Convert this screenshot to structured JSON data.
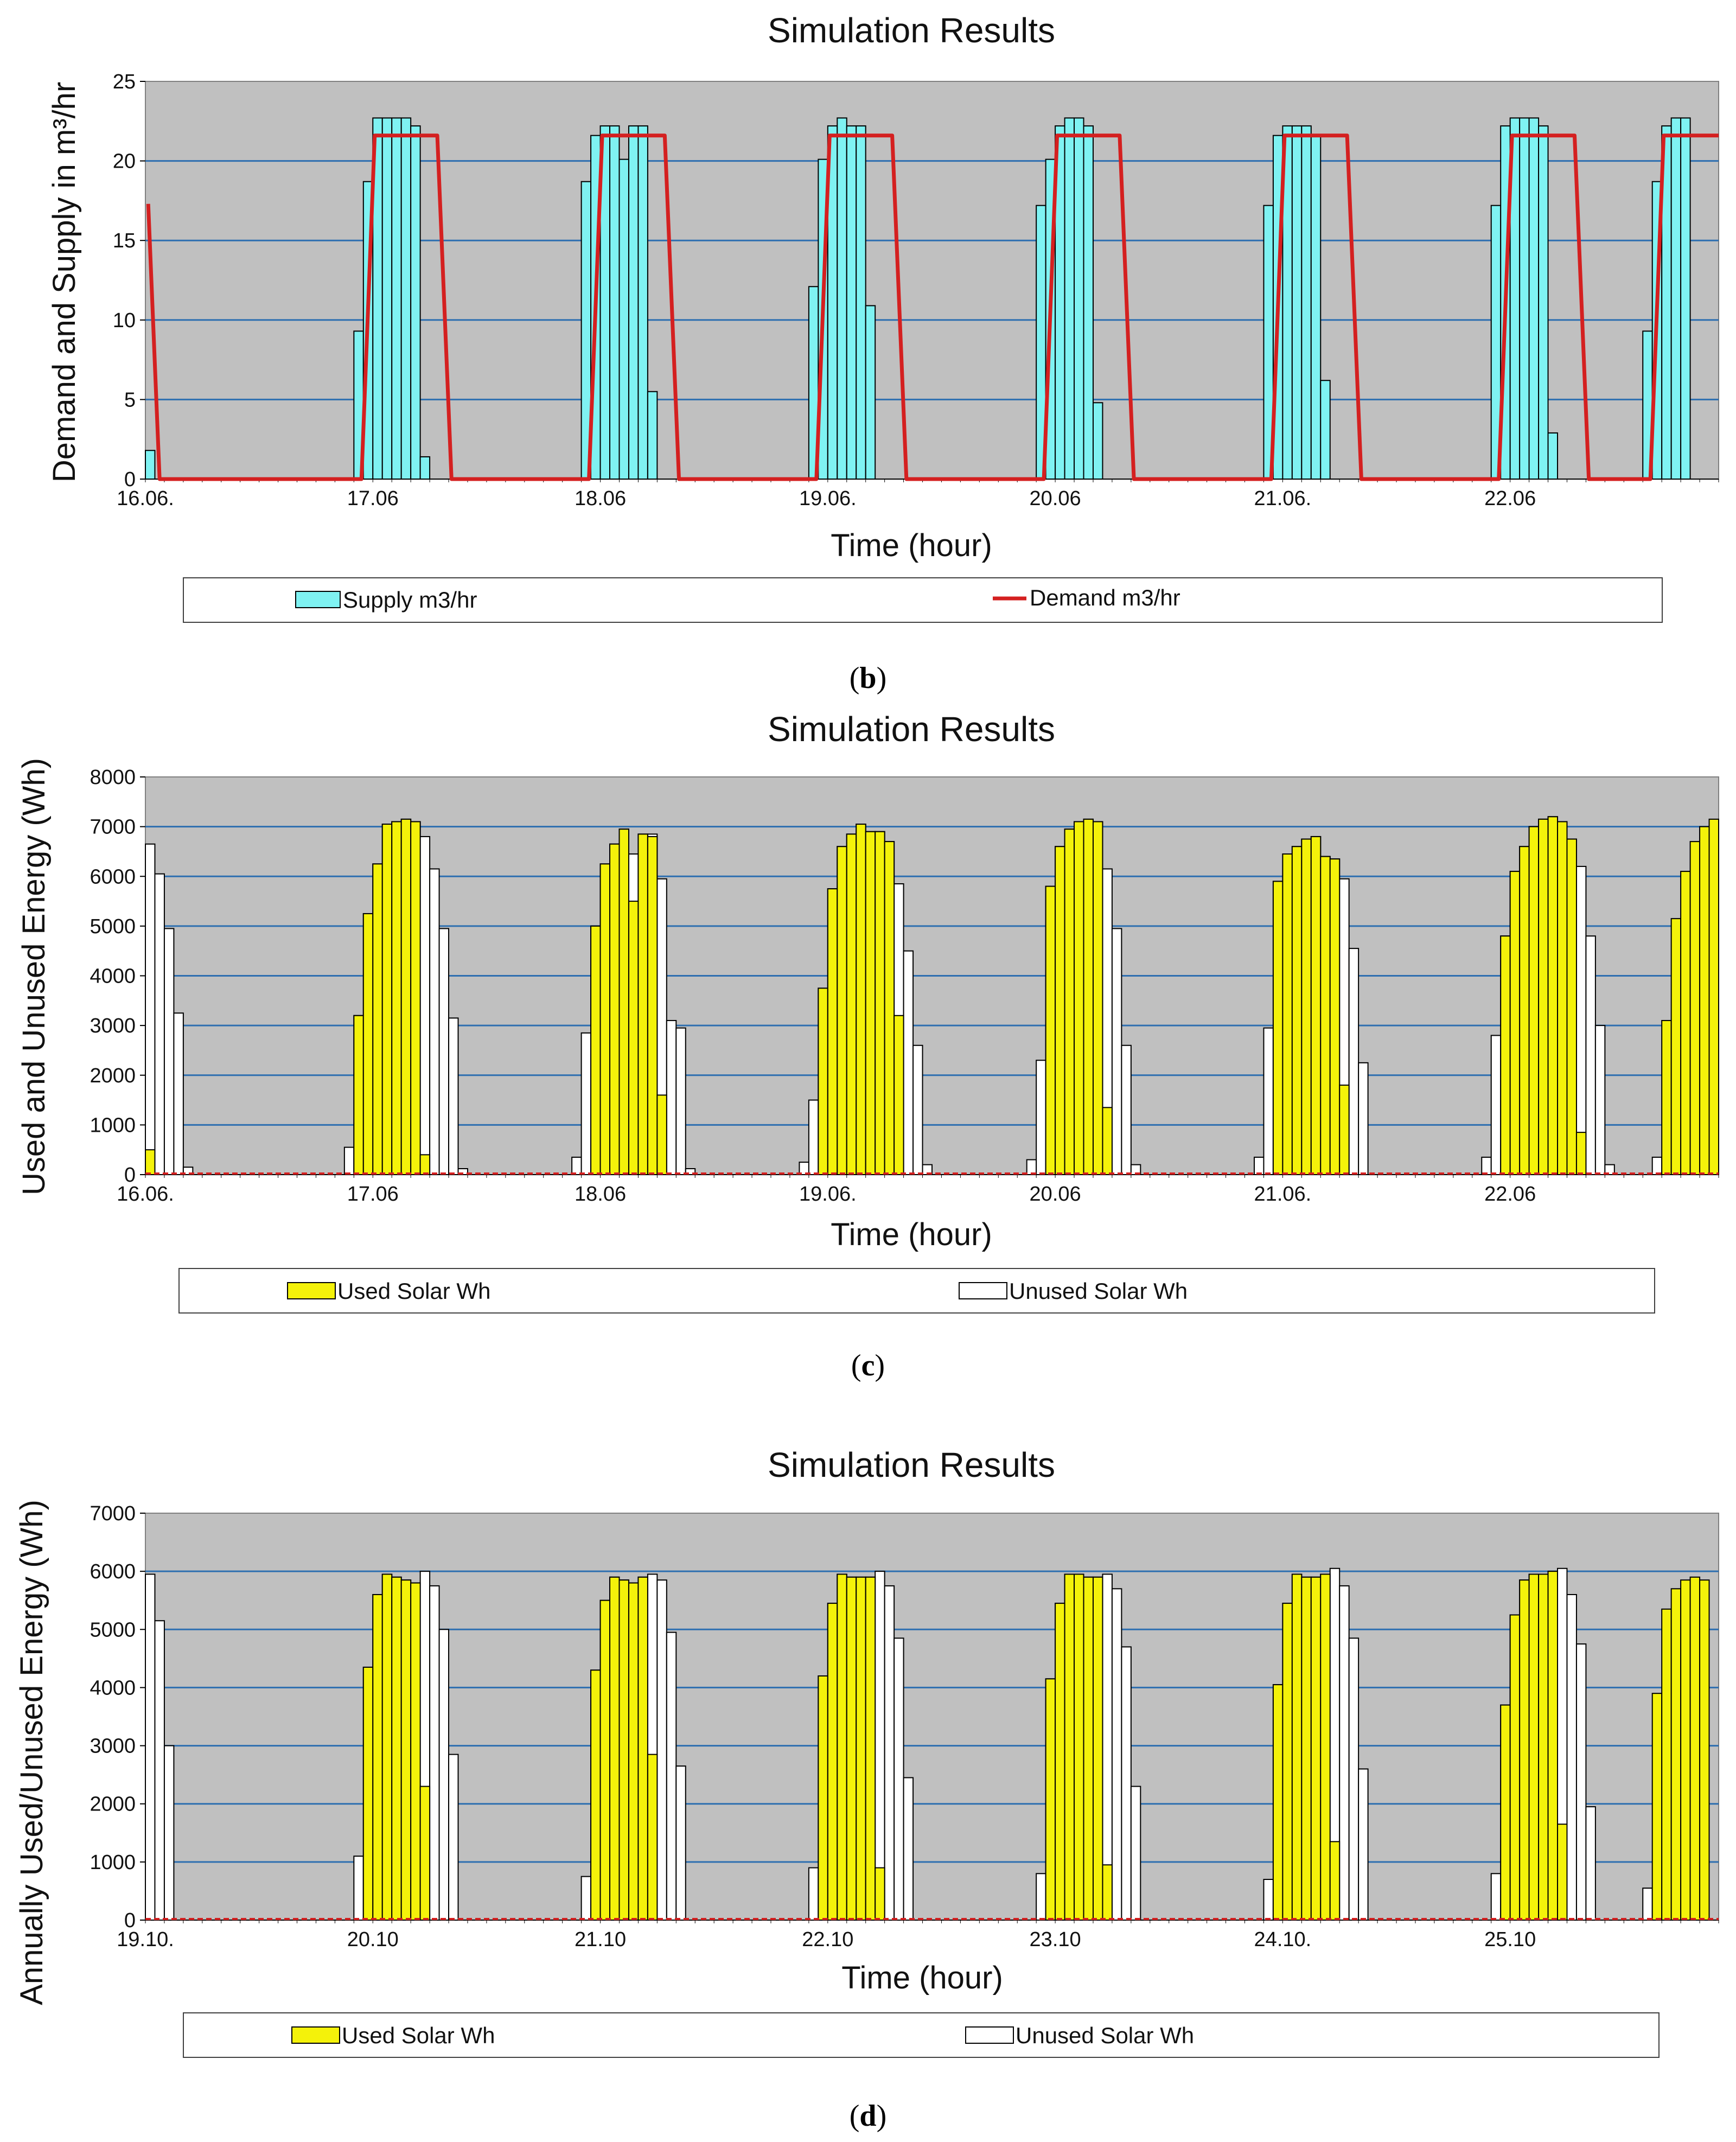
{
  "colors": {
    "plot_bg": "#c0c0c0",
    "grid": "#2e6fb0",
    "supply": "#7ff2f2",
    "demand": "#d42020",
    "used": "#f4f20a",
    "unused": "#ffffff",
    "bar_edge": "#000000"
  },
  "chart_data": [
    {
      "id": "b",
      "type": "bar",
      "panel_label": "b",
      "title": "Simulation Results",
      "xlabel": "Time (hour)",
      "ylabel": "Demand and Supply in m³/hr",
      "ylim": [
        0,
        25
      ],
      "yticks": [
        0,
        5,
        10,
        15,
        20,
        25
      ],
      "n_slots": 166,
      "day_ticks": [
        "16.06.",
        "17.06",
        "18.06",
        "19.06.",
        "20.06",
        "21.06.",
        "22.06"
      ],
      "legend": [
        "Supply m3/hr",
        "Demand m3/hr"
      ],
      "series": [
        {
          "name": "Supply m3/hr",
          "kind": "bar",
          "start": 0,
          "values": [
            1.8,
            0,
            0
          ]
        },
        {
          "name": "Supply m3/hr",
          "kind": "bar",
          "start": 22,
          "values": [
            9.3,
            18.7,
            22.7,
            22.7,
            22.7,
            22.7,
            22.2,
            1.4
          ]
        },
        {
          "name": "Supply m3/hr",
          "kind": "bar",
          "start": 46,
          "values": [
            18.7,
            21.6,
            22.2,
            22.2,
            20.1,
            22.2,
            22.2,
            5.5
          ]
        },
        {
          "name": "Supply m3/hr",
          "kind": "bar",
          "start": 70,
          "values": [
            12.1,
            20.1,
            22.2,
            22.7,
            22.2,
            22.2,
            10.9
          ]
        },
        {
          "name": "Supply m3/hr",
          "kind": "bar",
          "start": 94,
          "values": [
            17.2,
            20.1,
            22.2,
            22.7,
            22.7,
            22.2,
            4.8
          ]
        },
        {
          "name": "Supply m3/hr",
          "kind": "bar",
          "start": 118,
          "values": [
            17.2,
            21.6,
            22.2,
            22.2,
            22.2,
            21.6,
            6.2
          ]
        },
        {
          "name": "Supply m3/hr",
          "kind": "bar",
          "start": 142,
          "values": [
            17.2,
            22.2,
            22.7,
            22.7,
            22.7,
            22.2,
            2.9
          ]
        },
        {
          "name": "Supply m3/hr",
          "kind": "bar",
          "start": 158,
          "values": [
            9.3,
            18.7,
            22.2,
            22.7,
            22.7
          ]
        },
        {
          "name": "Demand m3/hr",
          "kind": "line",
          "points": [
            [
              0.3,
              17.3
            ],
            [
              1.5,
              0
            ],
            [
              22.8,
              0
            ],
            [
              24.2,
              21.6
            ],
            [
              30.8,
              21.6
            ],
            [
              32.3,
              0
            ],
            [
              46.8,
              0
            ],
            [
              48.2,
              21.6
            ],
            [
              54.8,
              21.6
            ],
            [
              56.3,
              0
            ],
            [
              70.8,
              0
            ],
            [
              72.2,
              21.6
            ],
            [
              78.8,
              21.6
            ],
            [
              80.3,
              0
            ],
            [
              94.8,
              0
            ],
            [
              96.2,
              21.6
            ],
            [
              102.8,
              21.6
            ],
            [
              104.3,
              0
            ],
            [
              118.8,
              0
            ],
            [
              120.2,
              21.6
            ],
            [
              126.8,
              21.6
            ],
            [
              128.3,
              0
            ],
            [
              142.8,
              0
            ],
            [
              144.2,
              21.6
            ],
            [
              150.8,
              21.6
            ],
            [
              152.3,
              0
            ],
            [
              158.8,
              0
            ],
            [
              160.2,
              21.6
            ],
            [
              166,
              21.6
            ]
          ]
        }
      ]
    },
    {
      "id": "c",
      "type": "bar",
      "panel_label": "c",
      "title": "Simulation Results",
      "xlabel": "Time (hour)",
      "ylabel": "Used and Unused Energy (Wh)",
      "ylim": [
        0,
        8000
      ],
      "yticks": [
        0,
        1000,
        2000,
        3000,
        4000,
        5000,
        6000,
        7000,
        8000
      ],
      "n_slots": 166,
      "day_ticks": [
        "16.06.",
        "17.06",
        "18.06",
        "19.06.",
        "20.06",
        "21.06.",
        "22.06"
      ],
      "legend": [
        "Used Solar Wh",
        "Unused Solar Wh"
      ],
      "series": [
        {
          "name": "Used Solar Wh",
          "kind": "bar",
          "start": 0,
          "values": [
            500,
            0,
            0,
            0,
            0
          ]
        },
        {
          "name": "Unused Solar Wh",
          "kind": "bar",
          "start": 0,
          "values": [
            6650,
            6050,
            4950,
            3250,
            150
          ]
        },
        {
          "name": "Unused Solar Wh",
          "kind": "bar",
          "start": 21,
          "values": [
            550,
            3200,
            5250,
            6250,
            7050,
            7100,
            7150,
            7100,
            6800,
            6150,
            4950,
            3150,
            120
          ]
        },
        {
          "name": "Used Solar Wh",
          "kind": "bar",
          "start": 22,
          "values": [
            3200,
            5250,
            6250,
            7050,
            7100,
            7150,
            7100,
            400
          ]
        },
        {
          "name": "Unused Solar Wh",
          "kind": "bar",
          "start": 45,
          "values": [
            350,
            2850,
            5000,
            6250,
            6650,
            6950,
            6450,
            6850,
            6850,
            5950,
            3100,
            2950,
            120
          ]
        },
        {
          "name": "Used Solar Wh",
          "kind": "bar",
          "start": 47,
          "values": [
            5000,
            6250,
            6650,
            6950,
            5500,
            6850,
            6800,
            1600
          ]
        },
        {
          "name": "Unused Solar Wh",
          "kind": "bar",
          "start": 69,
          "values": [
            250,
            1500,
            3750,
            5750,
            6600,
            6850,
            7050,
            6900,
            6900,
            6700,
            5850,
            4500,
            2600,
            200
          ]
        },
        {
          "name": "Used Solar Wh",
          "kind": "bar",
          "start": 71,
          "values": [
            3750,
            5750,
            6600,
            6850,
            7050,
            6900,
            6900,
            6700,
            3200
          ]
        },
        {
          "name": "Unused Solar Wh",
          "kind": "bar",
          "start": 93,
          "values": [
            300,
            2300,
            5800,
            6600,
            6950,
            7100,
            7150,
            7100,
            6150,
            4950,
            2600,
            200
          ]
        },
        {
          "name": "Used Solar Wh",
          "kind": "bar",
          "start": 95,
          "values": [
            5800,
            6600,
            6950,
            7100,
            7150,
            7100,
            1350
          ]
        },
        {
          "name": "Unused Solar Wh",
          "kind": "bar",
          "start": 117,
          "values": [
            350,
            2950,
            5900,
            6450,
            6600,
            6750,
            6800,
            6400,
            6350,
            5950,
            4550,
            2250
          ]
        },
        {
          "name": "Used Solar Wh",
          "kind": "bar",
          "start": 119,
          "values": [
            5900,
            6450,
            6600,
            6750,
            6800,
            6400,
            6350,
            1800
          ]
        },
        {
          "name": "Unused Solar Wh",
          "kind": "bar",
          "start": 141,
          "values": [
            350,
            2800,
            4800,
            6100,
            6600,
            7000,
            7150,
            7200,
            7100,
            6750,
            6200,
            4800,
            3000,
            200
          ]
        },
        {
          "name": "Used Solar Wh",
          "kind": "bar",
          "start": 143,
          "values": [
            4800,
            6100,
            6600,
            7000,
            7150,
            7200,
            7100,
            6750,
            850
          ]
        },
        {
          "name": "Unused Solar Wh",
          "kind": "bar",
          "start": 159,
          "values": [
            350
          ]
        },
        {
          "name": "Used Solar Wh",
          "kind": "bar",
          "start": 160,
          "values": [
            3100,
            5150,
            6100,
            6700,
            7000,
            7150
          ]
        }
      ]
    },
    {
      "id": "d",
      "type": "bar",
      "panel_label": "d",
      "title": "Simulation Results",
      "xlabel": "Time (hour)",
      "ylabel": "Annually Used/Unused Energy (Wh)",
      "ylim": [
        0,
        7000
      ],
      "yticks": [
        0,
        1000,
        2000,
        3000,
        4000,
        5000,
        6000,
        7000
      ],
      "n_slots": 166,
      "day_ticks": [
        "19.10.",
        "20.10",
        "21.10",
        "22.10",
        "23.10",
        "24.10.",
        "25.10"
      ],
      "legend": [
        "Used Solar Wh",
        "Unused Solar Wh"
      ],
      "series": [
        {
          "name": "Unused Solar Wh",
          "kind": "bar",
          "start": 0,
          "values": [
            5950,
            5150,
            3000
          ]
        },
        {
          "name": "Unused Solar Wh",
          "kind": "bar",
          "start": 22,
          "values": [
            1100,
            4350,
            5600,
            5950,
            5900,
            5850,
            5800,
            6000,
            5750,
            5000,
            2850
          ]
        },
        {
          "name": "Used Solar Wh",
          "kind": "bar",
          "start": 23,
          "values": [
            4350,
            5600,
            5950,
            5900,
            5850,
            5800,
            2300
          ]
        },
        {
          "name": "Unused Solar Wh",
          "kind": "bar",
          "start": 46,
          "values": [
            750,
            4300,
            5500,
            5900,
            5850,
            5800,
            5900,
            5950,
            5850,
            4950,
            2650
          ]
        },
        {
          "name": "Used Solar Wh",
          "kind": "bar",
          "start": 47,
          "values": [
            4300,
            5500,
            5900,
            5850,
            5800,
            5900,
            2850
          ]
        },
        {
          "name": "Unused Solar Wh",
          "kind": "bar",
          "start": 70,
          "values": [
            900,
            4200,
            5450,
            5950,
            5900,
            5900,
            5900,
            6000,
            5750,
            4850,
            2450
          ]
        },
        {
          "name": "Used Solar Wh",
          "kind": "bar",
          "start": 71,
          "values": [
            4200,
            5450,
            5950,
            5900,
            5900,
            5900,
            900
          ]
        },
        {
          "name": "Unused Solar Wh",
          "kind": "bar",
          "start": 94,
          "values": [
            800,
            4150,
            5450,
            5950,
            5950,
            5900,
            5900,
            5950,
            5700,
            4700,
            2300
          ]
        },
        {
          "name": "Used Solar Wh",
          "kind": "bar",
          "start": 95,
          "values": [
            4150,
            5450,
            5950,
            5950,
            5900,
            5900,
            950
          ]
        },
        {
          "name": "Unused Solar Wh",
          "kind": "bar",
          "start": 118,
          "values": [
            700,
            4050,
            5450,
            5950,
            5900,
            5900,
            5950,
            6050,
            5750,
            4850,
            2600
          ]
        },
        {
          "name": "Used Solar Wh",
          "kind": "bar",
          "start": 119,
          "values": [
            4050,
            5450,
            5950,
            5900,
            5900,
            5950,
            1350
          ]
        },
        {
          "name": "Unused Solar Wh",
          "kind": "bar",
          "start": 142,
          "values": [
            800,
            3700,
            5250,
            5850,
            5950,
            5950,
            6000,
            6050,
            5600,
            4750,
            1950
          ]
        },
        {
          "name": "Used Solar Wh",
          "kind": "bar",
          "start": 143,
          "values": [
            3700,
            5250,
            5850,
            5950,
            5950,
            6000,
            1650
          ]
        },
        {
          "name": "Unused Solar Wh",
          "kind": "bar",
          "start": 158,
          "values": [
            550
          ]
        },
        {
          "name": "Used Solar Wh",
          "kind": "bar",
          "start": 159,
          "values": [
            3900,
            5350,
            5700,
            5850,
            5900,
            5850
          ]
        }
      ]
    }
  ]
}
